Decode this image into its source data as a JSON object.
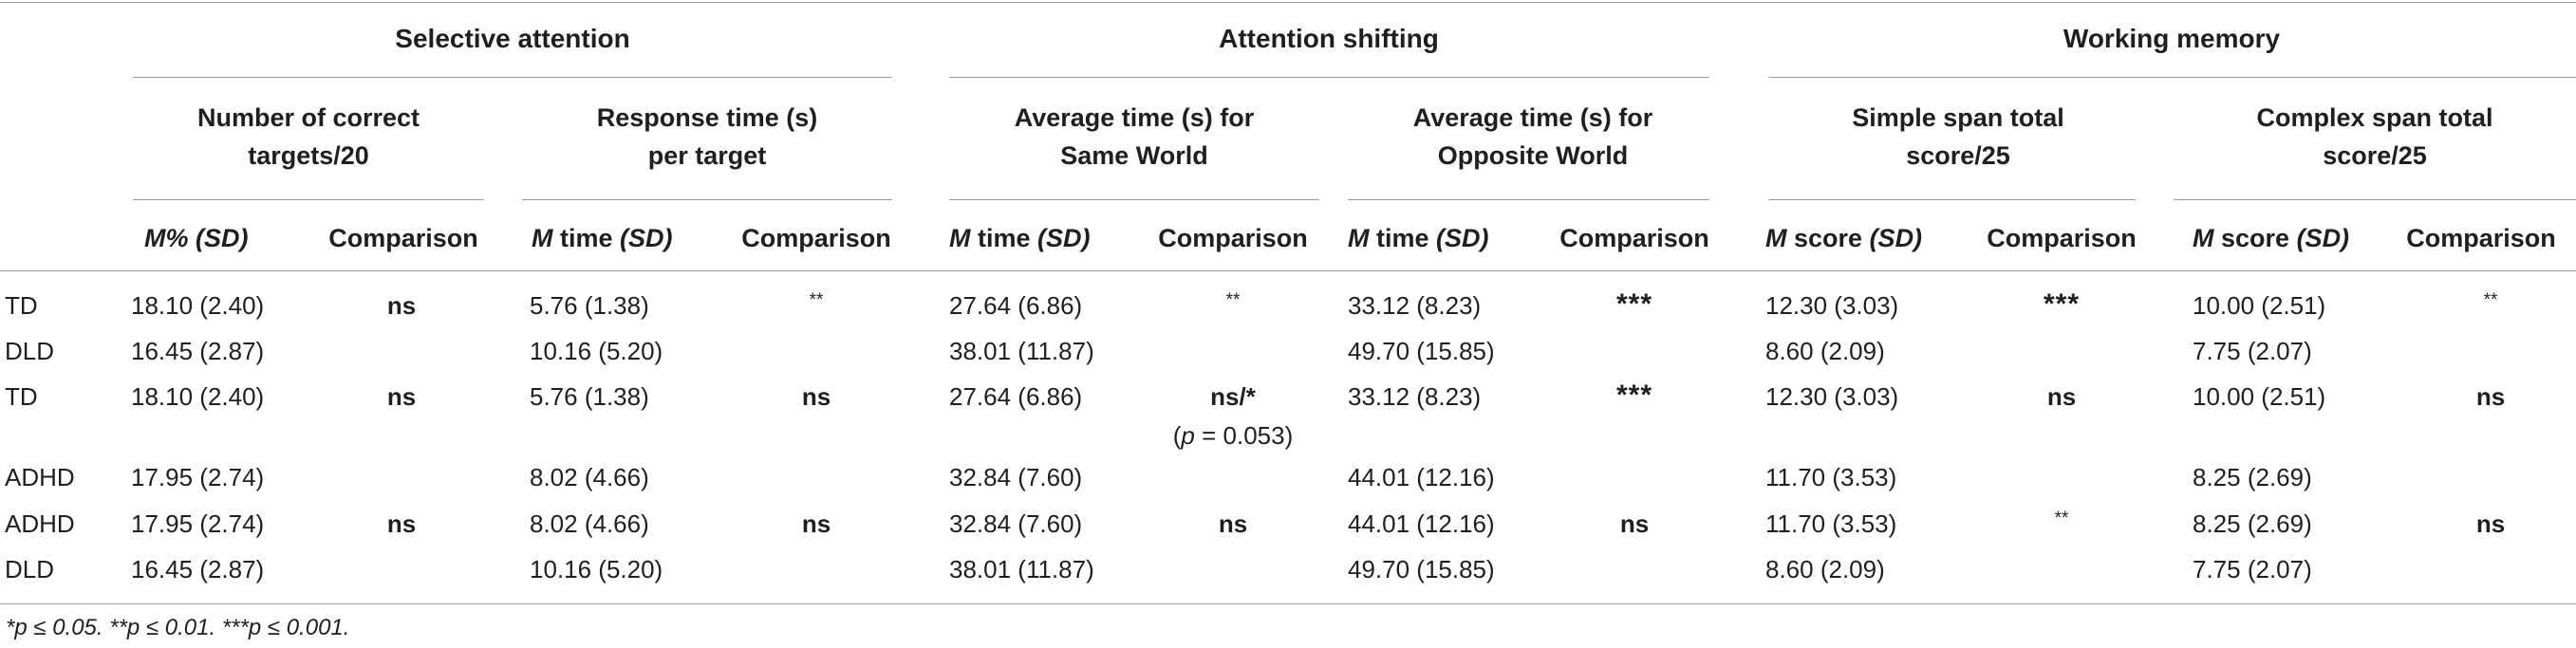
{
  "table": {
    "groups": [
      {
        "label": "Selective attention"
      },
      {
        "label": "Attention shifting"
      },
      {
        "label": "Working memory"
      }
    ],
    "subheaders": [
      {
        "line1": "Number of correct",
        "line2": "targets/20"
      },
      {
        "line1": "Response time (s)",
        "line2": "per target"
      },
      {
        "line1": "Average time (s) for",
        "line2": "Same World"
      },
      {
        "line1": "Average time (s) for",
        "line2": "Opposite World"
      },
      {
        "line1": "Simple span total",
        "line2": "score/25"
      },
      {
        "line1": "Complex span total",
        "line2": "score/25"
      }
    ],
    "column_headers": {
      "m_pct": {
        "m": "M",
        "rest": "% (SD)"
      },
      "m_time": {
        "m": "M",
        "mid": " time ",
        "sd": "(SD)"
      },
      "m_score": {
        "m": "M",
        "mid": " score ",
        "sd": "(SD)"
      },
      "comparison": "Comparison"
    },
    "rows": [
      {
        "label": "TD",
        "values": [
          "18.10 (2.40)",
          "5.76 (1.38)",
          "27.64 (6.86)",
          "33.12 (8.23)",
          "12.30 (3.03)",
          "10.00 (2.51)"
        ],
        "comparisons": [
          "ns",
          "**",
          "**",
          "***",
          "***",
          "**"
        ]
      },
      {
        "label": "DLD",
        "values": [
          "16.45 (2.87)",
          "10.16 (5.20)",
          "38.01 (11.87)",
          "49.70 (15.85)",
          "8.60 (2.09)",
          "7.75 (2.07)"
        ],
        "comparisons": [
          "",
          "",
          "",
          "",
          "",
          ""
        ]
      },
      {
        "label": "TD",
        "values": [
          "18.10 (2.40)",
          "5.76 (1.38)",
          "27.64 (6.86)",
          "33.12 (8.23)",
          "12.30 (3.03)",
          "10.00 (2.51)"
        ],
        "comparisons": [
          "ns",
          "ns",
          "ns/*",
          "***",
          "ns",
          "ns"
        ],
        "comparison_note": {
          "open": "(",
          "p": "p",
          "rest": " = 0.053)"
        }
      },
      {
        "label": "ADHD",
        "values": [
          "17.95 (2.74)",
          "8.02 (4.66)",
          "32.84 (7.60)",
          "44.01 (12.16)",
          "11.70 (3.53)",
          "8.25 (2.69)"
        ],
        "comparisons": [
          "",
          "",
          "",
          "",
          "",
          ""
        ]
      },
      {
        "label": "ADHD",
        "values": [
          "17.95 (2.74)",
          "8.02 (4.66)",
          "32.84 (7.60)",
          "44.01 (12.16)",
          "11.70 (3.53)",
          "8.25 (2.69)"
        ],
        "comparisons": [
          "ns",
          "ns",
          "ns",
          "ns",
          "**",
          "ns"
        ]
      },
      {
        "label": "DLD",
        "values": [
          "16.45 (2.87)",
          "10.16 (5.20)",
          "38.01 (11.87)",
          "49.70 (15.85)",
          "8.60 (2.09)",
          "7.75 (2.07)"
        ],
        "comparisons": [
          "",
          "",
          "",
          "",
          "",
          ""
        ]
      }
    ],
    "footnote": "*p ≤ 0.05. **p ≤ 0.01. ***p ≤ 0.001."
  }
}
